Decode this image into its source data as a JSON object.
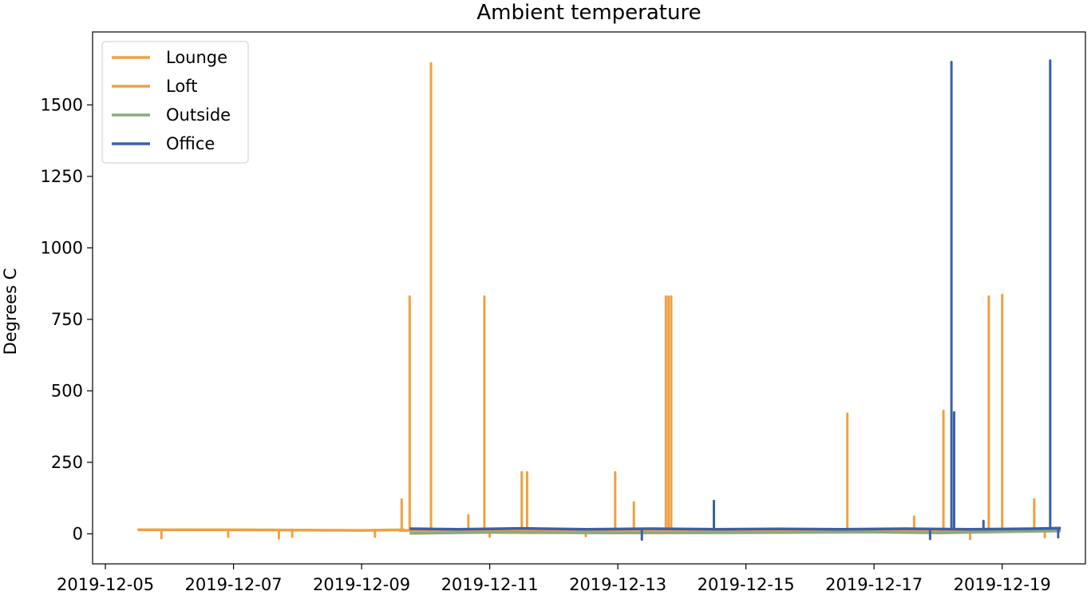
{
  "chart_data": {
    "type": "line",
    "title": "Ambient temperature",
    "xlabel": "",
    "ylabel": "Degrees C",
    "xlim": [
      "2019-12-04T19:12",
      "2019-12-20T07:12"
    ],
    "ylim": [
      -105,
      1755
    ],
    "x_ticks": [
      "2019-12-05",
      "2019-12-07",
      "2019-12-09",
      "2019-12-11",
      "2019-12-13",
      "2019-12-15",
      "2019-12-17",
      "2019-12-19"
    ],
    "y_ticks": [
      0,
      250,
      500,
      750,
      1000,
      1250,
      1500
    ],
    "y_tick_labels": [
      "0",
      "250",
      "500",
      "750",
      "1000",
      "1250",
      "1500"
    ],
    "grid": false,
    "legend_position": "upper-left",
    "series": [
      {
        "name": "Lounge",
        "color": "#f0a040",
        "baseline": {
          "x": [
            "2019-12-05T12:00",
            "2019-12-07T00:00",
            "2019-12-09T00:00",
            "2019-12-09T16:00"
          ],
          "y": [
            14,
            14,
            12,
            14
          ]
        },
        "spikes": [
          {
            "x": "2019-12-05T21:00",
            "y": -15
          },
          {
            "x": "2019-12-06T22:00",
            "y": -10
          },
          {
            "x": "2019-12-07T17:00",
            "y": -16
          },
          {
            "x": "2019-12-07T22:00",
            "y": -10
          },
          {
            "x": "2019-12-09T05:00",
            "y": -10
          }
        ]
      },
      {
        "name": "Loft",
        "color": "#f0a040",
        "baseline": {
          "x": [
            "2019-12-09T14:00",
            "2019-12-10T12:00",
            "2019-12-12T00:00",
            "2019-12-14T00:00",
            "2019-12-16T00:00",
            "2019-12-18T00:00",
            "2019-12-19T12:00",
            "2019-12-19T22:00"
          ],
          "y": [
            12,
            10,
            12,
            10,
            12,
            10,
            12,
            14
          ]
        },
        "spikes": [
          {
            "x": "2019-12-09T15:00",
            "y": 120
          },
          {
            "x": "2019-12-09T18:00",
            "y": 830
          },
          {
            "x": "2019-12-10T02:00",
            "y": 1645
          },
          {
            "x": "2019-12-10T16:00",
            "y": 65
          },
          {
            "x": "2019-12-10T22:00",
            "y": 830
          },
          {
            "x": "2019-12-11T12:00",
            "y": 215
          },
          {
            "x": "2019-12-11T14:00",
            "y": 215
          },
          {
            "x": "2019-12-12T23:00",
            "y": 215
          },
          {
            "x": "2019-12-13T06:00",
            "y": 110
          },
          {
            "x": "2019-12-13T18:00",
            "y": 830
          },
          {
            "x": "2019-12-13T19:00",
            "y": 830
          },
          {
            "x": "2019-12-13T20:00",
            "y": 830
          },
          {
            "x": "2019-12-16T14:00",
            "y": 420
          },
          {
            "x": "2019-12-17T15:00",
            "y": 60
          },
          {
            "x": "2019-12-18T02:00",
            "y": 430
          },
          {
            "x": "2019-12-18T19:00",
            "y": 830
          },
          {
            "x": "2019-12-19T00:00",
            "y": 835
          },
          {
            "x": "2019-12-19T12:00",
            "y": 120
          },
          {
            "x": "2019-12-11T00:00",
            "y": -10
          },
          {
            "x": "2019-12-12T12:00",
            "y": -8
          },
          {
            "x": "2019-12-18T12:00",
            "y": -18
          },
          {
            "x": "2019-12-19T16:00",
            "y": -12
          }
        ]
      },
      {
        "name": "Outside",
        "color": "#8caa7e",
        "baseline": {
          "x": [
            "2019-12-09T18:00",
            "2019-12-11T00:00",
            "2019-12-13T00:00",
            "2019-12-15T00:00",
            "2019-12-17T00:00",
            "2019-12-18T00:00",
            "2019-12-19T00:00",
            "2019-12-19T22:00"
          ],
          "y": [
            2,
            5,
            3,
            4,
            6,
            3,
            7,
            10
          ]
        },
        "spikes": []
      },
      {
        "name": "Office",
        "color": "#3a60a8",
        "baseline": {
          "x": [
            "2019-12-09T18:00",
            "2019-12-10T12:00",
            "2019-12-11T12:00",
            "2019-12-12T12:00",
            "2019-12-13T12:00",
            "2019-12-14T12:00",
            "2019-12-15T12:00",
            "2019-12-16T12:00",
            "2019-12-17T12:00",
            "2019-12-18T12:00",
            "2019-12-19T12:00",
            "2019-12-19T22:00"
          ],
          "y": [
            18,
            16,
            19,
            16,
            18,
            16,
            17,
            16,
            18,
            16,
            18,
            20
          ]
        },
        "spikes": [
          {
            "x": "2019-12-13T09:00",
            "y": -20
          },
          {
            "x": "2019-12-14T12:00",
            "y": 115
          },
          {
            "x": "2019-12-17T21:00",
            "y": -18
          },
          {
            "x": "2019-12-18T05:00",
            "y": 1650
          },
          {
            "x": "2019-12-18T06:00",
            "y": 425
          },
          {
            "x": "2019-12-18T17:00",
            "y": 45
          },
          {
            "x": "2019-12-19T18:00",
            "y": 1655
          },
          {
            "x": "2019-12-19T21:00",
            "y": -12
          }
        ]
      }
    ]
  }
}
